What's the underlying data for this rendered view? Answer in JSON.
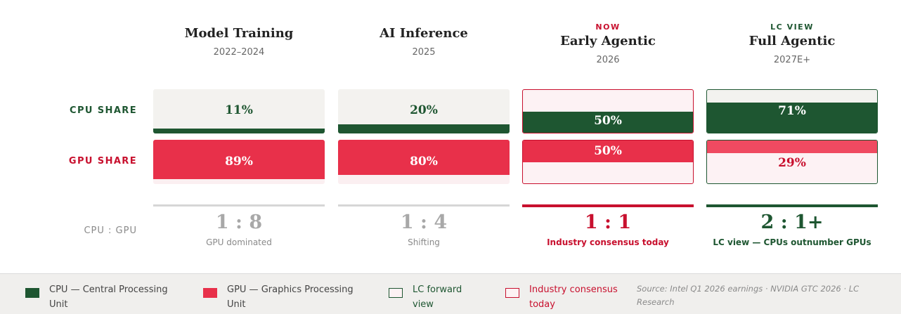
{
  "chart_data": {
    "type": "bar",
    "title": "",
    "categories": [
      "Model Training",
      "AI Inference",
      "Early Agentic",
      "Full Agentic"
    ],
    "periods": [
      "2022–2024",
      "2025",
      "2026",
      "2027E+"
    ],
    "tags": [
      "",
      "",
      "NOW",
      "LC VIEW"
    ],
    "series": [
      {
        "name": "CPU SHARE",
        "values": [
          11,
          20,
          50,
          71
        ],
        "labels": [
          "11%",
          "20%",
          "50%",
          "71%"
        ],
        "color": "#1e5631"
      },
      {
        "name": "GPU SHARE",
        "values": [
          89,
          80,
          50,
          29
        ],
        "labels": [
          "89%",
          "80%",
          "50%",
          "29%"
        ],
        "color": "#e8304a"
      }
    ],
    "ratio_label": "CPU : GPU",
    "ratios": [
      "1 : 8",
      "1 : 4",
      "1 : 1",
      "2 : 1+"
    ],
    "ratio_captions": [
      "GPU dominated",
      "Shifting",
      "Industry consensus today",
      "LC view — CPUs outnumber GPUs"
    ],
    "ylim": [
      0,
      100
    ],
    "legend": [
      {
        "label": "CPU — Central Processing Unit",
        "line1": "CPU — Central Processing",
        "line2": "Unit",
        "color": "#1e5631"
      },
      {
        "label": "GPU — Graphics Processing Unit",
        "line1": "GPU — Graphics Processing",
        "line2": "Unit",
        "color": "#e8304a"
      },
      {
        "label": "LC forward view",
        "line1": "LC forward",
        "line2": "view",
        "color": "#1e5631"
      },
      {
        "label": "Industry consensus today",
        "line1": "Industry consensus",
        "line2": "today",
        "color": "#c8102e"
      }
    ],
    "source": "Source: Intel Q1 2026 earnings · NVIDIA GTC 2026 · LC Research",
    "legend_placement": "bottom"
  }
}
